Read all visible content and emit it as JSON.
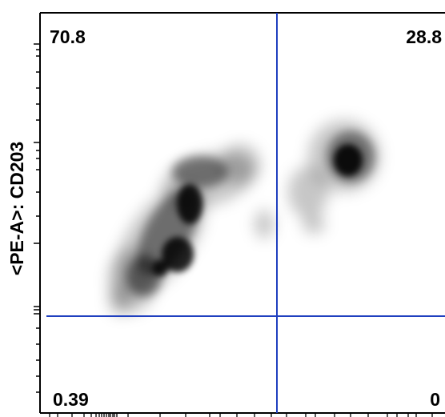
{
  "chart_data": {
    "type": "heatmap",
    "subtype": "flow-cytometry-density-plot",
    "ylabel": "<PE-A>: CD203",
    "xlabel": "",
    "quadrant_lines_color": "#1f3fbf",
    "density_color": "#000000",
    "axis_scale": "log",
    "quadrants": [
      {
        "position": "top-left",
        "percent": "70.8"
      },
      {
        "position": "top-right",
        "percent": "28.8"
      },
      {
        "position": "bottom-left",
        "percent": "0.39"
      },
      {
        "position": "bottom-right",
        "percent": "0"
      }
    ]
  }
}
